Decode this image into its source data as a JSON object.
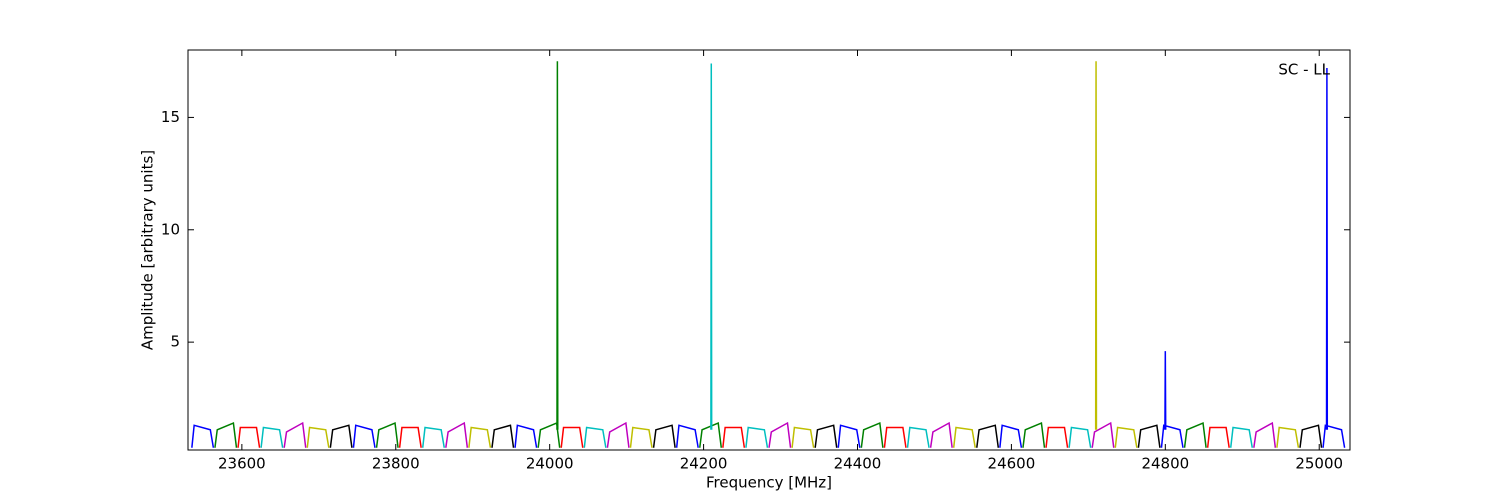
{
  "chart_data": {
    "type": "line",
    "xlabel": "Frequency [MHz]",
    "ylabel": "Amplitude [arbitrary units]",
    "annotation": "SC - LL",
    "xlim": [
      23530,
      25040
    ],
    "ylim": [
      0.2,
      18
    ],
    "xticks": [
      23600,
      23800,
      24000,
      24200,
      24400,
      24600,
      24800,
      25000
    ],
    "yticks": [
      5,
      10,
      15
    ],
    "series": [
      {
        "color": "#0000ff",
        "x": [
          23535,
          23538,
          23559,
          23563,
          null,
          23745,
          23748,
          23769,
          23773,
          null,
          23955,
          23958,
          23979,
          23983,
          null,
          24165,
          24168,
          24189,
          24193,
          null,
          24375,
          24378,
          24399,
          24403,
          null,
          24585,
          24588,
          24609,
          24613,
          null,
          24795,
          24798,
          24819,
          24823,
          null,
          25005,
          25008,
          25029,
          25033,
          null,
          24799.5,
          24800,
          24800.5,
          null,
          25009.5,
          25010,
          25010.5
        ],
        "values": [
          0.3,
          1.3,
          1.1,
          0.3,
          null,
          0.3,
          1.3,
          1.1,
          0.3,
          null,
          0.3,
          1.3,
          1.1,
          0.3,
          null,
          0.3,
          1.3,
          1.1,
          0.3,
          null,
          0.3,
          1.3,
          1.1,
          0.3,
          null,
          0.3,
          1.3,
          1.1,
          0.3,
          null,
          0.3,
          1.3,
          1.1,
          0.3,
          null,
          0.3,
          1.3,
          1.1,
          0.3,
          null,
          1.1,
          4.6,
          1.1,
          null,
          1.1,
          17.2,
          1.1
        ]
      },
      {
        "color": "#008000",
        "x": [
          23565,
          23568,
          23589,
          23593,
          null,
          23775,
          23778,
          23799,
          23803,
          null,
          23985,
          23988,
          24009,
          24013,
          null,
          24195,
          24198,
          24219,
          24223,
          null,
          24405,
          24408,
          24429,
          24433,
          null,
          24615,
          24618,
          24639,
          24643,
          null,
          24825,
          24828,
          24849,
          24853,
          null,
          24009.5,
          24010,
          24010.5
        ],
        "values": [
          0.3,
          1.1,
          1.4,
          0.3,
          null,
          0.3,
          1.1,
          1.4,
          0.3,
          null,
          0.3,
          1.1,
          1.4,
          0.3,
          null,
          0.3,
          1.1,
          1.4,
          0.3,
          null,
          0.3,
          1.1,
          1.4,
          0.3,
          null,
          0.3,
          1.1,
          1.4,
          0.3,
          null,
          0.3,
          1.1,
          1.4,
          0.3,
          null,
          1.1,
          17.5,
          1.1
        ]
      },
      {
        "color": "#ff0000",
        "x": [
          23595,
          23598,
          23619,
          23623,
          null,
          23805,
          23808,
          23829,
          23833,
          null,
          24015,
          24018,
          24039,
          24043,
          null,
          24225,
          24228,
          24249,
          24253,
          null,
          24435,
          24438,
          24459,
          24463,
          null,
          24645,
          24648,
          24669,
          24673,
          null,
          24855,
          24858,
          24879,
          24883
        ],
        "values": [
          0.3,
          1.2,
          1.2,
          0.3,
          null,
          0.3,
          1.2,
          1.2,
          0.3,
          null,
          0.3,
          1.2,
          1.2,
          0.3,
          null,
          0.3,
          1.2,
          1.2,
          0.3,
          null,
          0.3,
          1.2,
          1.2,
          0.3,
          null,
          0.3,
          1.2,
          1.2,
          0.3,
          null,
          0.3,
          1.2,
          1.2,
          0.3
        ]
      },
      {
        "color": "#00bfbf",
        "x": [
          23625,
          23628,
          23649,
          23653,
          null,
          23835,
          23838,
          23859,
          23863,
          null,
          24045,
          24048,
          24069,
          24073,
          null,
          24255,
          24258,
          24279,
          24283,
          null,
          24465,
          24468,
          24489,
          24493,
          null,
          24675,
          24678,
          24699,
          24703,
          null,
          24885,
          24888,
          24909,
          24913,
          null,
          24209.5,
          24210,
          24210.5
        ],
        "values": [
          0.3,
          1.2,
          1.1,
          0.3,
          null,
          0.3,
          1.2,
          1.1,
          0.3,
          null,
          0.3,
          1.2,
          1.1,
          0.3,
          null,
          0.3,
          1.2,
          1.1,
          0.3,
          null,
          0.3,
          1.2,
          1.1,
          0.3,
          null,
          0.3,
          1.2,
          1.1,
          0.3,
          null,
          0.3,
          1.2,
          1.1,
          0.3,
          null,
          1.1,
          17.4,
          1.1
        ]
      },
      {
        "color": "#bf00bf",
        "x": [
          23655,
          23658,
          23679,
          23683,
          null,
          23865,
          23868,
          23889,
          23893,
          null,
          24075,
          24078,
          24099,
          24103,
          null,
          24285,
          24288,
          24309,
          24313,
          null,
          24495,
          24498,
          24519,
          24523,
          null,
          24705,
          24708,
          24729,
          24733,
          null,
          24915,
          24918,
          24939,
          24943
        ],
        "values": [
          0.3,
          1.0,
          1.4,
          0.3,
          null,
          0.3,
          1.0,
          1.4,
          0.3,
          null,
          0.3,
          1.0,
          1.4,
          0.3,
          null,
          0.3,
          1.0,
          1.4,
          0.3,
          null,
          0.3,
          1.0,
          1.4,
          0.3,
          null,
          0.3,
          1.0,
          1.4,
          0.3,
          null,
          0.3,
          1.0,
          1.4,
          0.3
        ]
      },
      {
        "color": "#bfbf00",
        "x": [
          23685,
          23688,
          23709,
          23713,
          null,
          23895,
          23898,
          23919,
          23923,
          null,
          24105,
          24108,
          24129,
          24133,
          null,
          24315,
          24318,
          24339,
          24343,
          null,
          24525,
          24528,
          24549,
          24553,
          null,
          24735,
          24738,
          24759,
          24763,
          null,
          24945,
          24948,
          24969,
          24973,
          null,
          24709.5,
          24710,
          24710.5
        ],
        "values": [
          0.3,
          1.2,
          1.1,
          0.3,
          null,
          0.3,
          1.2,
          1.1,
          0.3,
          null,
          0.3,
          1.2,
          1.1,
          0.3,
          null,
          0.3,
          1.2,
          1.1,
          0.3,
          null,
          0.3,
          1.2,
          1.1,
          0.3,
          null,
          0.3,
          1.2,
          1.1,
          0.3,
          null,
          0.3,
          1.2,
          1.1,
          0.3,
          null,
          1.1,
          17.5,
          1.1
        ]
      },
      {
        "color": "#000000",
        "x": [
          23715,
          23718,
          23739,
          23743,
          null,
          23925,
          23928,
          23949,
          23953,
          null,
          24135,
          24138,
          24159,
          24163,
          null,
          24345,
          24348,
          24369,
          24373,
          null,
          24555,
          24558,
          24579,
          24583,
          null,
          24765,
          24768,
          24789,
          24793,
          null,
          24975,
          24978,
          24999,
          25003
        ],
        "values": [
          0.3,
          1.1,
          1.3,
          0.3,
          null,
          0.3,
          1.1,
          1.3,
          0.3,
          null,
          0.3,
          1.1,
          1.3,
          0.3,
          null,
          0.3,
          1.1,
          1.3,
          0.3,
          null,
          0.3,
          1.1,
          1.3,
          0.3,
          null,
          0.3,
          1.1,
          1.3,
          0.3,
          null,
          0.3,
          1.1,
          1.3,
          0.3
        ]
      }
    ]
  }
}
